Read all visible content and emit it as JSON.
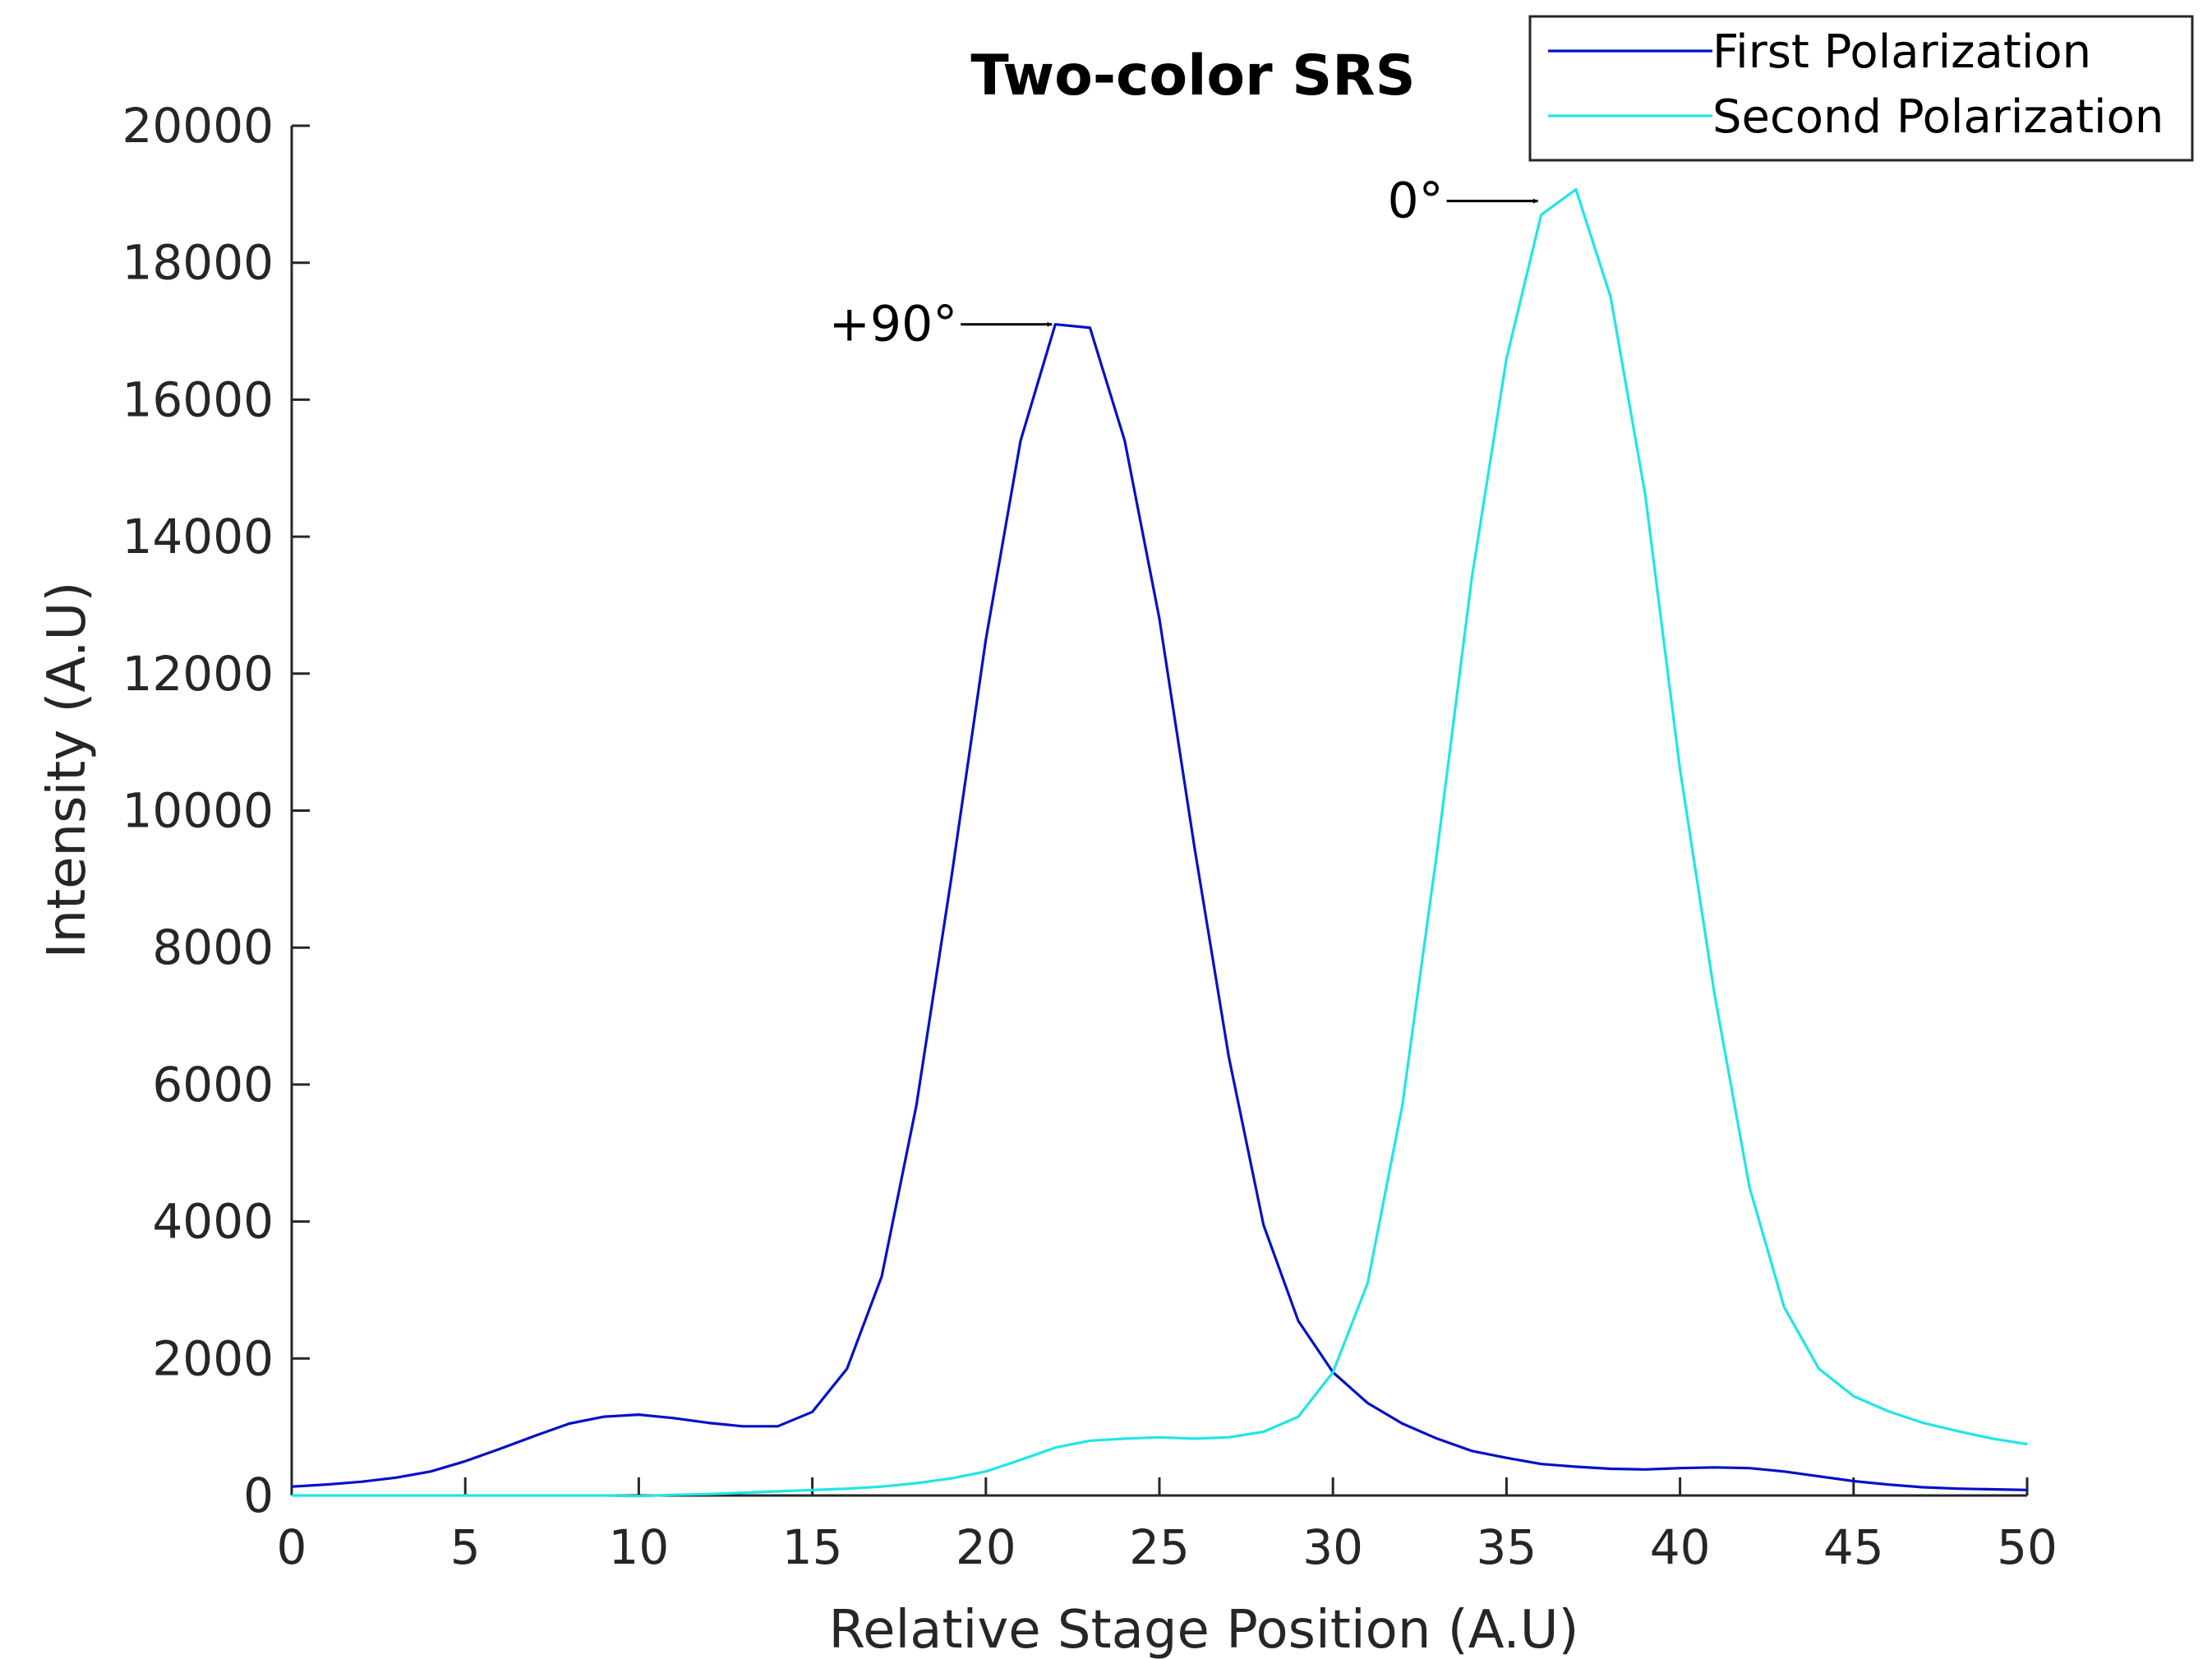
{
  "chart_data": {
    "type": "line",
    "title": "Two-color SRS",
    "xlabel": "Relative Stage Position (A.U)",
    "ylabel": "Intensity (A.U)",
    "xlim": [
      0,
      50
    ],
    "ylim": [
      0,
      20000
    ],
    "xticks": [
      0,
      5,
      10,
      15,
      20,
      25,
      30,
      35,
      40,
      45,
      50
    ],
    "yticks": [
      0,
      2000,
      4000,
      6000,
      8000,
      10000,
      12000,
      14000,
      16000,
      18000,
      20000
    ],
    "grid": false,
    "legend_position": "top-right",
    "series": [
      {
        "name": "First Polarization",
        "color": "#0010c8",
        "x": [
          0,
          1,
          2,
          3,
          4,
          5,
          6,
          7,
          8,
          9,
          10,
          11,
          12,
          13,
          14,
          15,
          16,
          17,
          18,
          19,
          20,
          21,
          22,
          23,
          24,
          25,
          26,
          27,
          28,
          29,
          30,
          31,
          32,
          33,
          34,
          35,
          36,
          37,
          38,
          39,
          40,
          41,
          42,
          43,
          44,
          45,
          46,
          47,
          48,
          49,
          50
        ],
        "y": [
          130,
          160,
          200,
          260,
          350,
          500,
          680,
          870,
          1050,
          1150,
          1180,
          1130,
          1060,
          1010,
          1010,
          1220,
          1850,
          3200,
          5700,
          9000,
          12500,
          15400,
          17100,
          17050,
          15400,
          12800,
          9500,
          6400,
          3950,
          2550,
          1800,
          1350,
          1050,
          830,
          650,
          550,
          460,
          420,
          390,
          380,
          400,
          410,
          400,
          350,
          280,
          210,
          160,
          120,
          100,
          90,
          80
        ]
      },
      {
        "name": "Second Polarization",
        "color": "#1fe6e6",
        "x": [
          0,
          1,
          2,
          3,
          4,
          5,
          6,
          7,
          8,
          9,
          10,
          11,
          12,
          13,
          14,
          15,
          16,
          17,
          18,
          19,
          20,
          21,
          22,
          23,
          24,
          25,
          26,
          27,
          28,
          29,
          30,
          31,
          32,
          33,
          34,
          35,
          36,
          37,
          38,
          39,
          40,
          41,
          42,
          43,
          44,
          45,
          46,
          47,
          48,
          49,
          50
        ],
        "y": [
          0,
          0,
          0,
          0,
          0,
          0,
          0,
          0,
          0,
          0,
          -10,
          10,
          20,
          40,
          60,
          80,
          100,
          130,
          180,
          250,
          350,
          520,
          700,
          800,
          830,
          850,
          830,
          850,
          930,
          1150,
          1800,
          3100,
          5700,
          9400,
          13400,
          16600,
          18700,
          19070,
          17500,
          14600,
          10600,
          7300,
          4500,
          2750,
          1850,
          1450,
          1230,
          1060,
          940,
          830,
          750
        ]
      }
    ],
    "annotations": [
      {
        "text": "+90°",
        "target_x": 22,
        "target_y": 17100
      },
      {
        "text": "0°",
        "target_x": 36,
        "target_y": 18900
      }
    ]
  }
}
